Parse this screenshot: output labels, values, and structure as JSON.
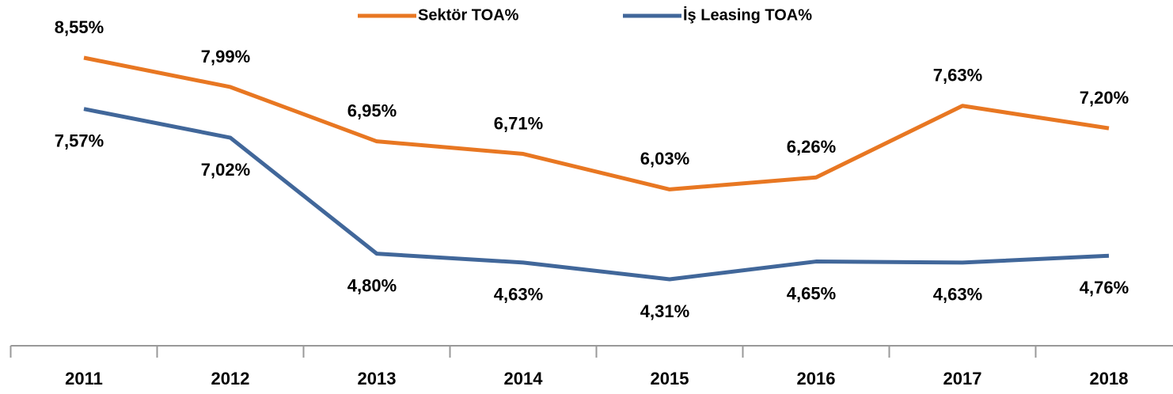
{
  "chart_data": {
    "type": "line",
    "categories": [
      "2011",
      "2012",
      "2013",
      "2014",
      "2015",
      "2016",
      "2017",
      "2018"
    ],
    "series": [
      {
        "name": "Sektör TOA%",
        "color": "#E87722",
        "values": [
          8.55,
          7.99,
          6.95,
          6.71,
          6.03,
          6.26,
          7.63,
          7.2
        ],
        "value_labels": [
          "8,55%",
          "7,99%",
          "6,95%",
          "6,71%",
          "6,03%",
          "6,26%",
          "7,63%",
          "7,20%"
        ]
      },
      {
        "name": "İş Leasing TOA%",
        "color": "#41679A",
        "values": [
          7.57,
          7.02,
          4.8,
          4.63,
          4.31,
          4.65,
          4.63,
          4.76
        ],
        "value_labels": [
          "7,57%",
          "7,02%",
          "4,80%",
          "4,63%",
          "4,31%",
          "4,65%",
          "4,63%",
          "4,76%"
        ]
      }
    ]
  }
}
